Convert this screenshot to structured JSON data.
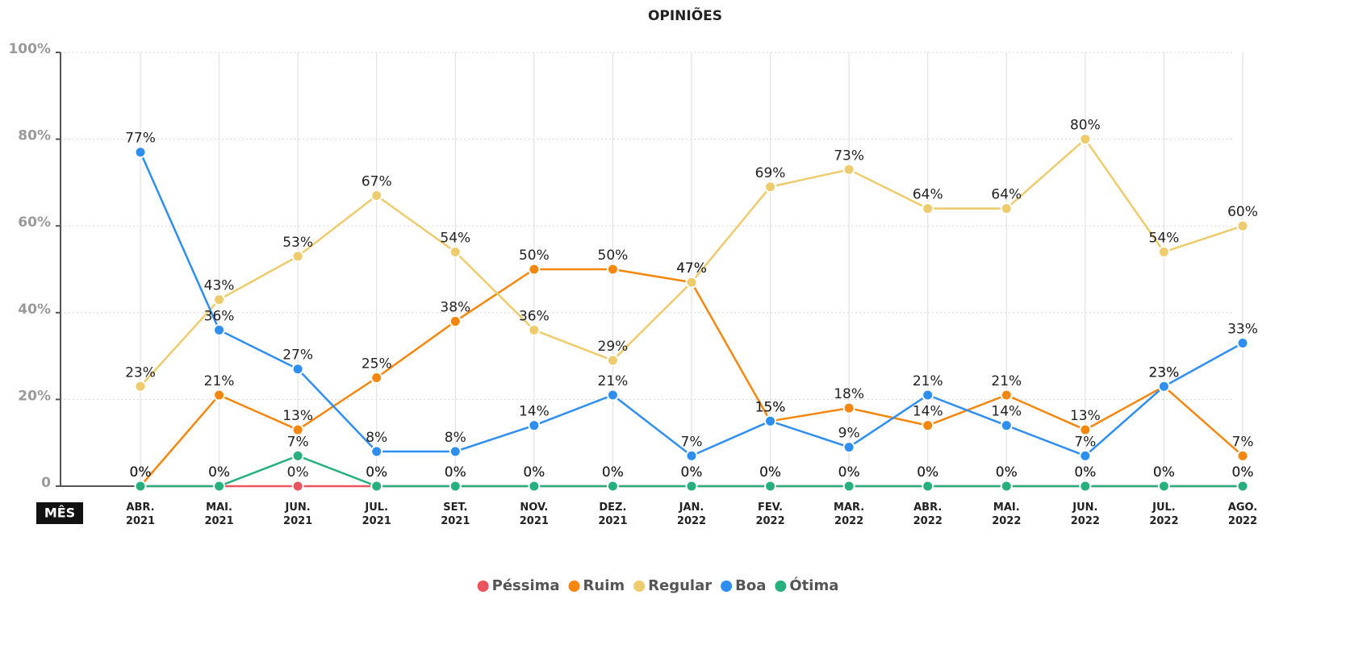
{
  "chart_data": {
    "type": "line",
    "title": "OPINIÕES",
    "x_label": "MÊS",
    "categories": [
      "ABR. 2021",
      "MAI. 2021",
      "JUN. 2021",
      "JUL. 2021",
      "SET. 2021",
      "NOV. 2021",
      "DEZ. 2021",
      "JAN. 2022",
      "FEV. 2022",
      "MAR. 2022",
      "ABR. 2022",
      "MAI. 2022",
      "JUN. 2022",
      "JUL. 2022",
      "AGO. 2022"
    ],
    "series": [
      {
        "name": "Péssima",
        "color": "#e9545e",
        "values": [
          0,
          0,
          0,
          0,
          0,
          0,
          0,
          0,
          0,
          0,
          0,
          0,
          0,
          0,
          0
        ]
      },
      {
        "name": "Ruim",
        "color": "#f5870f",
        "values": [
          0,
          21,
          13,
          25,
          38,
          50,
          50,
          47,
          15,
          18,
          14,
          21,
          13,
          23,
          7
        ]
      },
      {
        "name": "Regular",
        "color": "#eecb6c",
        "values": [
          23,
          43,
          53,
          67,
          54,
          36,
          29,
          47,
          69,
          73,
          64,
          64,
          80,
          54,
          60
        ]
      },
      {
        "name": "Boa",
        "color": "#2f8ff0",
        "values": [
          77,
          36,
          27,
          8,
          8,
          14,
          21,
          7,
          15,
          9,
          21,
          14,
          7,
          23,
          33
        ]
      },
      {
        "name": "Ótima",
        "color": "#26b07d",
        "values": [
          0,
          0,
          7,
          0,
          0,
          0,
          0,
          0,
          0,
          0,
          0,
          0,
          0,
          0,
          0
        ]
      }
    ],
    "ylim": [
      0,
      100
    ],
    "yticks": [
      0,
      {
        "value": 20,
        "label": "20%"
      },
      {
        "value": 40,
        "label": "40%"
      },
      {
        "value": 60,
        "label": "60%"
      },
      {
        "value": 80,
        "label": "80%"
      },
      {
        "value": 100,
        "label": "100%"
      }
    ],
    "grid": true,
    "legend": "bottom",
    "value_suffix_labels": true
  }
}
